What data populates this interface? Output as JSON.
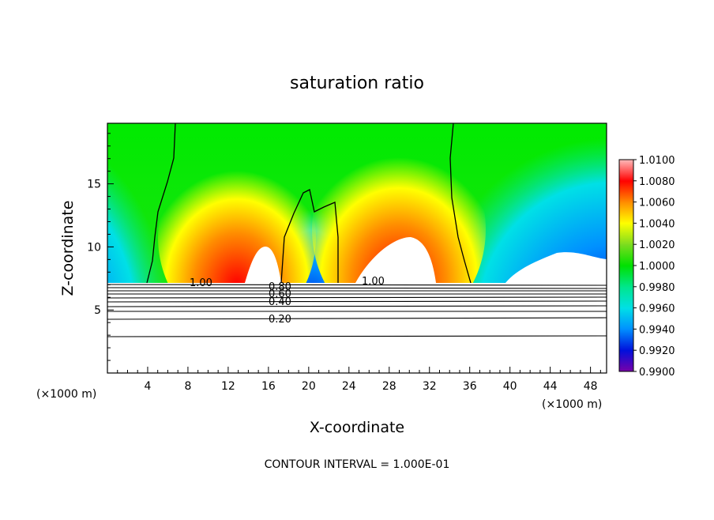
{
  "chart_data": {
    "type": "heatmap",
    "title": "saturation ratio",
    "xlabel": "X-coordinate",
    "ylabel": "Z-coordinate",
    "x_unit": "(×1000 m)",
    "x_unit_right": "(×1000 m)",
    "footer": "CONTOUR INTERVAL = 1.000E-01",
    "xlim": [
      0,
      49.6
    ],
    "ylim": [
      0,
      19.8
    ],
    "x_ticks": [
      "4",
      "8",
      "12",
      "16",
      "20",
      "24",
      "28",
      "32",
      "36",
      "40",
      "44",
      "48"
    ],
    "y_ticks": [
      "5",
      "10",
      "15"
    ],
    "colorbar": {
      "ticks": [
        "1.0100",
        "1.0080",
        "1.0060",
        "1.0040",
        "1.0020",
        "1.0000",
        "0.9980",
        "0.9960",
        "0.9940",
        "0.9920",
        "0.9900"
      ],
      "colors": [
        "#ffbaba",
        "#ff0000",
        "#ff8c00",
        "#ffff00",
        "#7ddc1f",
        "#00e000",
        "#00e68c",
        "#00e0e6",
        "#0090ff",
        "#0010dc",
        "#7a00a8"
      ]
    },
    "contour_labels": [
      "1.00",
      "1.00",
      "0.80",
      "0.60",
      "0.40",
      "0.20"
    ]
  }
}
